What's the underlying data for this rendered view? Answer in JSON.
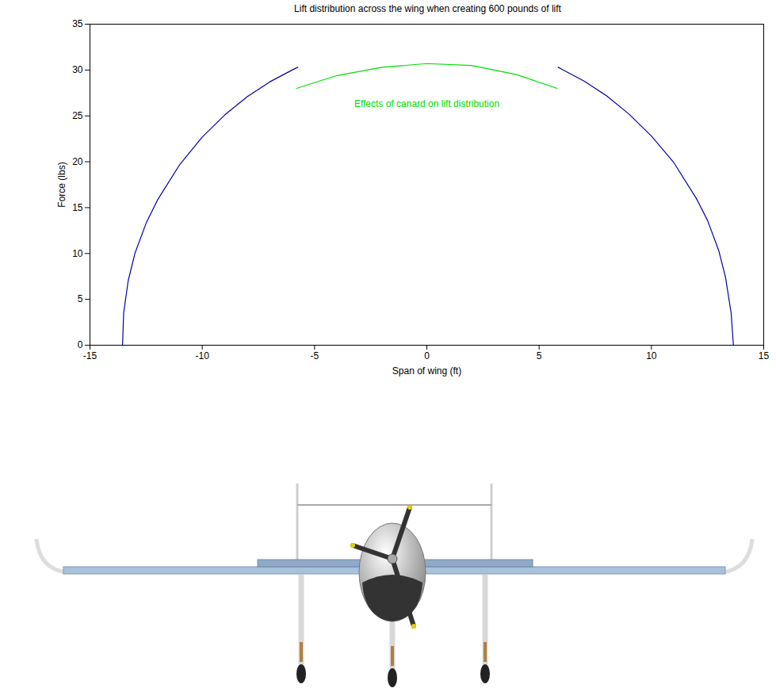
{
  "chart_data": {
    "type": "line",
    "title": "Lift distribution across the wing when creating 600 pounds of lift",
    "x_label": "Span of wing (ft)",
    "y_label": "Force (lbs)",
    "xlim": [
      -15,
      15
    ],
    "xticks": [
      -15,
      -10,
      -5,
      0,
      5,
      10,
      15
    ],
    "ylim": [
      0,
      35
    ],
    "yticks": [
      0,
      5,
      10,
      15,
      20,
      25,
      30,
      35
    ],
    "grid": false,
    "series": [
      {
        "color": "#0000aa",
        "x": [
          -13.55,
          -13.5,
          -13.3,
          -13.0,
          -12.5,
          -12.0,
          -11.0,
          -10.0,
          -9.0,
          -8.0,
          -7.0,
          -6.0,
          -5.75
        ],
        "values": [
          0,
          3.5,
          7.0,
          10.0,
          13.3,
          15.8,
          19.7,
          22.7,
          25.1,
          27.1,
          28.7,
          30.0,
          30.3
        ]
      },
      {
        "color": "#00dd00",
        "x": [
          -5.8,
          -4.0,
          -2.0,
          0.0,
          2.0,
          4.0,
          5.8
        ],
        "values": [
          28.0,
          29.4,
          30.3,
          30.7,
          30.5,
          29.5,
          28.0
        ]
      },
      {
        "color": "#0000aa",
        "x": [
          5.85,
          6.0,
          7.0,
          8.0,
          9.0,
          10.0,
          11.0,
          12.0,
          12.5,
          13.0,
          13.3,
          13.55,
          13.65
        ],
        "values": [
          30.3,
          30.1,
          28.8,
          27.2,
          25.2,
          22.8,
          19.9,
          16.0,
          13.6,
          10.3,
          7.4,
          3.5,
          0
        ]
      }
    ],
    "annotations": [
      {
        "text": "Effects of canard on lift distribution",
        "x": 0,
        "y": 26.3,
        "color": "#00dd00"
      }
    ]
  }
}
